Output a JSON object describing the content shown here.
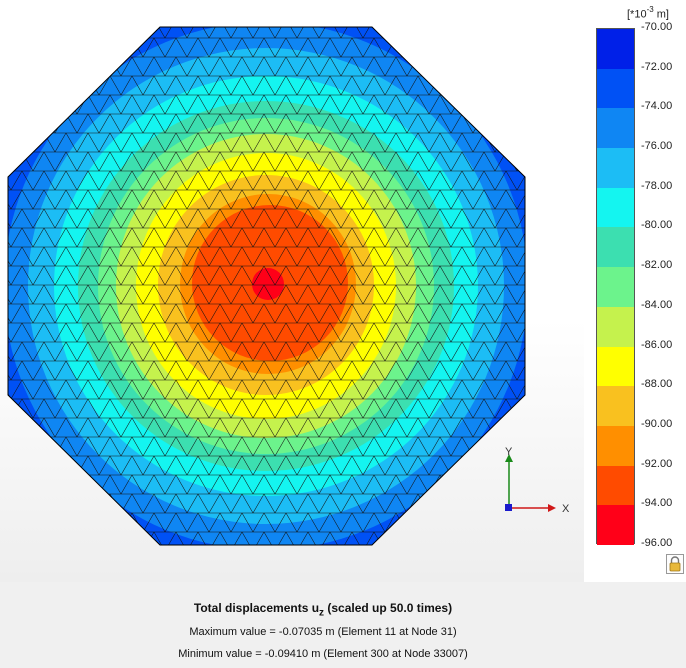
{
  "legend": {
    "unit_prefix": "[*10",
    "unit_exponent": "-3",
    "unit_suffix": " m]",
    "labels": [
      "-70.00",
      "-72.00",
      "-74.00",
      "-76.00",
      "-78.00",
      "-80.00",
      "-82.00",
      "-84.00",
      "-86.00",
      "-88.00",
      "-90.00",
      "-92.00",
      "-94.00",
      "-96.00"
    ],
    "colors": [
      "#0020e8",
      "#0051f5",
      "#0f86f3",
      "#1cbdf5",
      "#14f5f0",
      "#3cdfb0",
      "#6cf38c",
      "#c5f24d",
      "#ffff00",
      "#f9c11f",
      "#ff8f00",
      "#ff4b00",
      "#ff0018"
    ]
  },
  "axes": {
    "x_label": "X",
    "y_label": "Y"
  },
  "info": {
    "title_prefix": "Total displacements u",
    "title_subscript": "z",
    "title_suffix": " (scaled up 50.0 times)",
    "max_line": "Maximum value = -0.07035 m (Element 11 at Node 31)",
    "min_line": "Minimum value = -0.09410 m (Element 300 at Node 33007)"
  },
  "icons": {
    "lock": "lock-icon"
  }
}
